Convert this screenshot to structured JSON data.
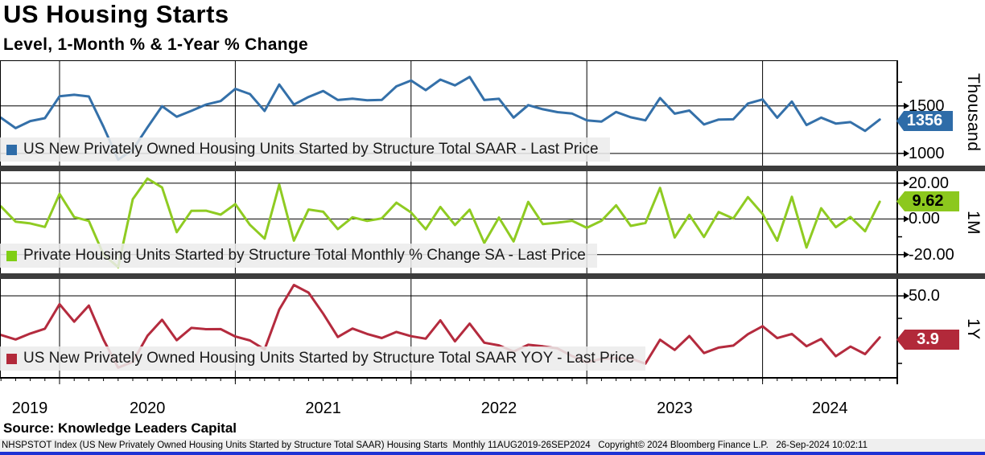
{
  "title": "US Housing Starts",
  "subtitle": "Level, 1-Month % & 1-Year % Change",
  "source_line": "Source: Knowledge Leaders Capital",
  "footer": "NHSPSTOT Index (US New Privately Owned Housing Units Started by Structure Total SAAR) Housing Starts  Monthly 11AUG2019-26SEP2024   Copyright© 2024 Bloomberg Finance L.P.   26-Sep-2024 10:02:11",
  "colors": {
    "blue": "#2e6ca8",
    "green": "#8cc81e",
    "red": "#b2293a",
    "divider": "#3c3c3c",
    "grid": "#000000",
    "legend_band": "#ebebeb",
    "footer_band": "#efefef",
    "bottom_bar": "#1e32d4"
  },
  "x_axis": {
    "year_labels": [
      "2019",
      "2020",
      "2021",
      "2022",
      "2023",
      "2024"
    ],
    "range_label": "11AUG2019-26SEP2024",
    "frequency": "Monthly"
  },
  "chart_data": [
    {
      "type": "line",
      "name": "level",
      "legend": "US New Privately Owned Housing Units Started by Structure Total SAAR - Last Price",
      "axis_title": "Thousand",
      "line_color": "#3470a9",
      "badge": {
        "label": "1356",
        "bg": "#2e6ca8",
        "text_color": "#ffffff"
      },
      "ylim": [
        880,
        1980
      ],
      "y_ticks": [
        {
          "v": 1500,
          "label": "1500"
        },
        {
          "v": 1000,
          "label": "1000"
        }
      ],
      "minor_ticks": [
        1750
      ],
      "values": [
        1375,
        1266,
        1340,
        1371,
        1601,
        1617,
        1599,
        1280,
        934,
        1038,
        1273,
        1497,
        1386,
        1448,
        1514,
        1551,
        1680,
        1625,
        1447,
        1725,
        1514,
        1594,
        1657,
        1562,
        1576,
        1559,
        1563,
        1706,
        1768,
        1666,
        1777,
        1716,
        1805,
        1562,
        1575,
        1377,
        1508,
        1465,
        1434,
        1419,
        1348,
        1334,
        1436,
        1380,
        1348,
        1583,
        1418,
        1451,
        1305,
        1356,
        1359,
        1525,
        1568,
        1376,
        1546,
        1299,
        1377,
        1314,
        1329,
        1237,
        1356
      ]
    },
    {
      "type": "line",
      "name": "monthly_pct_change",
      "legend": "Private Housing Units Started by Structure Total Monthly % Change SA - Last Price",
      "axis_title": "1M",
      "line_color": "#8fcb22",
      "badge": {
        "label": "9.62",
        "bg": "#8cc81e",
        "text_color": "#000000"
      },
      "ylim": [
        -30,
        25.8
      ],
      "y_ticks": [
        {
          "v": 20,
          "label": "20.00"
        },
        {
          "v": 0,
          "label": "0.00"
        },
        {
          "v": -20,
          "label": "-20.00"
        }
      ],
      "minor_ticks": [
        10,
        -10
      ],
      "values": [
        7.0,
        -1.5,
        -2.5,
        -4.5,
        14.0,
        1.0,
        -1.1,
        -19.9,
        -27.0,
        11.1,
        22.6,
        17.6,
        -7.4,
        4.5,
        4.6,
        2.4,
        8.3,
        -3.3,
        -11.0,
        19.2,
        -12.2,
        5.3,
        4.0,
        -5.7,
        0.9,
        -1.1,
        0.3,
        9.1,
        3.6,
        -5.8,
        6.7,
        -3.4,
        5.2,
        -13.5,
        0.8,
        -12.6,
        9.5,
        -2.9,
        -2.1,
        -1.0,
        -5.0,
        -1.0,
        7.6,
        -3.9,
        -2.3,
        17.4,
        -10.4,
        2.3,
        -10.1,
        3.9,
        0.2,
        12.2,
        2.8,
        -12.2,
        12.4,
        -16.0,
        6.0,
        -4.6,
        1.1,
        -6.9,
        9.62
      ]
    },
    {
      "type": "line",
      "name": "yoy_pct_change",
      "legend": "US New Privately Owned Housing Units Started by Structure Total SAAR YOY - Last Price",
      "axis_title": "1Y",
      "line_color": "#b42b3e",
      "badge": {
        "label": "3.9",
        "bg": "#b2293a",
        "text_color": "#ffffff"
      },
      "ylim": [
        -41,
        67
      ],
      "y_ticks": [
        {
          "v": 50,
          "label": "50.0"
        },
        {
          "v": 0,
          "label": ""
        }
      ],
      "minor_ticks": [
        25,
        -25
      ],
      "values": [
        6.6,
        1.6,
        8.2,
        13.5,
        40.8,
        21.4,
        39.2,
        1.4,
        -29.7,
        -23.2,
        5.6,
        23.4,
        0.8,
        14.4,
        13.0,
        13.1,
        4.9,
        0.5,
        -9.5,
        34.8,
        62.1,
        53.6,
        30.2,
        4.3,
        13.7,
        7.7,
        3.2,
        10.0,
        5.2,
        2.5,
        22.8,
        -0.5,
        19.2,
        -2.0,
        -4.9,
        -11.8,
        -4.3,
        -6.0,
        -8.3,
        -16.8,
        -23.8,
        -19.9,
        -19.2,
        -19.6,
        -25.3,
        1.3,
        -10.0,
        5.4,
        -13.5,
        -7.4,
        -5.2,
        7.5,
        16.3,
        3.1,
        7.7,
        -5.9,
        2.2,
        -17.0,
        -6.3,
        -14.7,
        3.9
      ]
    }
  ],
  "dates": [
    "2019-08",
    "2019-09",
    "2019-10",
    "2019-11",
    "2019-12",
    "2020-01",
    "2020-02",
    "2020-03",
    "2020-04",
    "2020-05",
    "2020-06",
    "2020-07",
    "2020-08",
    "2020-09",
    "2020-10",
    "2020-11",
    "2020-12",
    "2021-01",
    "2021-02",
    "2021-03",
    "2021-04",
    "2021-05",
    "2021-06",
    "2021-07",
    "2021-08",
    "2021-09",
    "2021-10",
    "2021-11",
    "2021-12",
    "2022-01",
    "2022-02",
    "2022-03",
    "2022-04",
    "2022-05",
    "2022-06",
    "2022-07",
    "2022-08",
    "2022-09",
    "2022-10",
    "2022-11",
    "2022-12",
    "2023-01",
    "2023-02",
    "2023-03",
    "2023-04",
    "2023-05",
    "2023-06",
    "2023-07",
    "2023-08",
    "2023-09",
    "2023-10",
    "2023-11",
    "2023-12",
    "2024-01",
    "2024-02",
    "2024-03",
    "2024-04",
    "2024-05",
    "2024-06",
    "2024-07",
    "2024-08"
  ]
}
